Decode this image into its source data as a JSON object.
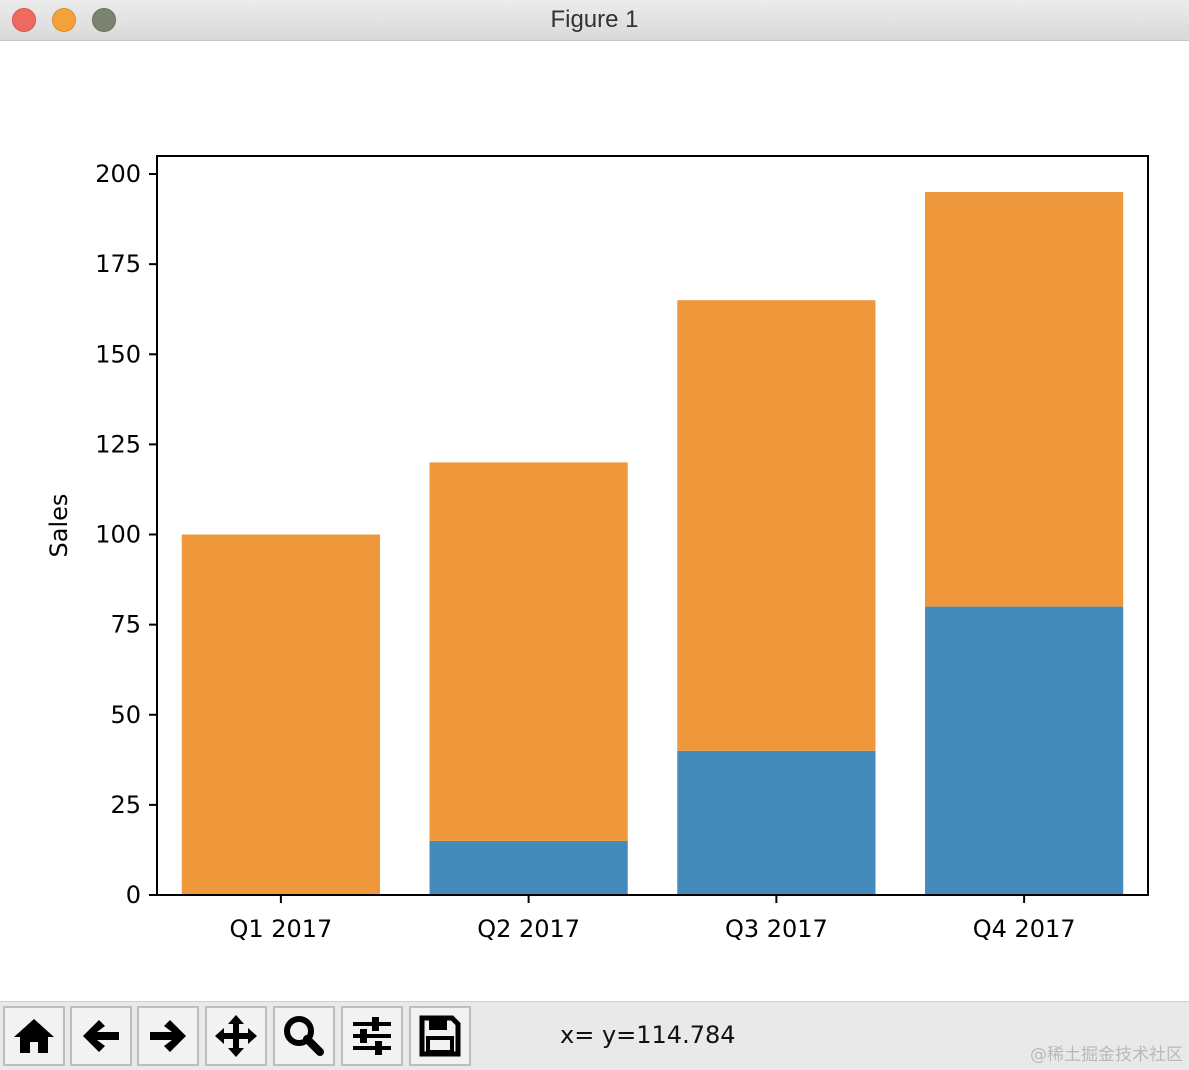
{
  "window": {
    "title": "Figure 1",
    "buttons": [
      "close",
      "minimize",
      "maximize"
    ]
  },
  "toolbar": {
    "buttons": [
      {
        "name": "home-icon"
      },
      {
        "name": "back-arrow-icon"
      },
      {
        "name": "forward-arrow-icon"
      },
      {
        "name": "pan-icon"
      },
      {
        "name": "zoom-icon"
      },
      {
        "name": "configure-subplots-icon"
      },
      {
        "name": "save-icon"
      }
    ],
    "coordinates": "x= y=114.784"
  },
  "watermark": "@稀土掘金技术社区",
  "colors": {
    "series_blue": "#448bbc",
    "series_orange": "#ef973b"
  },
  "chart_data": {
    "type": "bar",
    "stacked": true,
    "categories": [
      "Q1 2017",
      "Q2 2017",
      "Q3 2017",
      "Q4 2017"
    ],
    "series": [
      {
        "color": "#448bbc",
        "values": [
          0,
          15,
          40,
          80
        ]
      },
      {
        "color": "#ef973b",
        "values": [
          100,
          105,
          125,
          115
        ]
      }
    ],
    "title": "",
    "xlabel": "",
    "ylabel": "Sales",
    "ylim": [
      0,
      205
    ],
    "yticks": [
      0,
      25,
      50,
      75,
      100,
      125,
      150,
      175,
      200
    ],
    "grid": false,
    "legend": "none"
  }
}
